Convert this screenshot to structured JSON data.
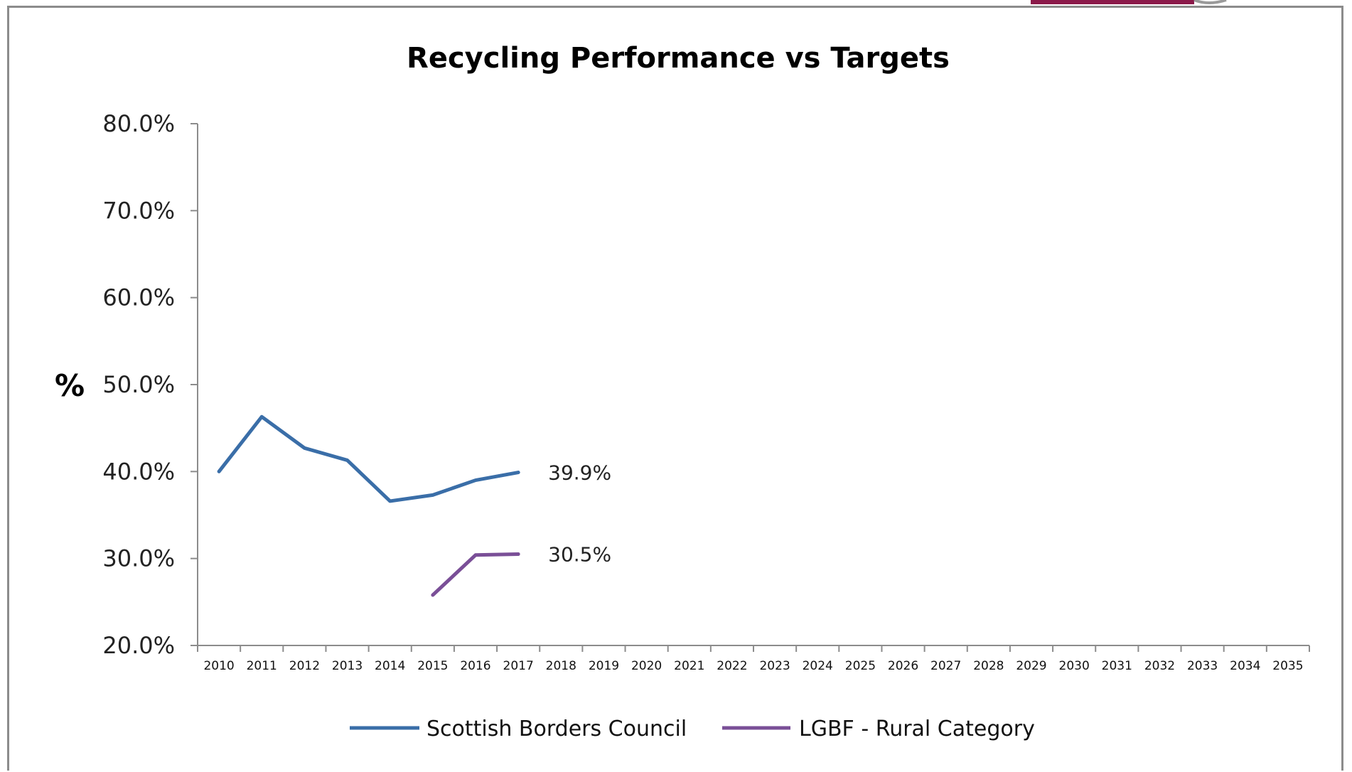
{
  "chart_data": {
    "type": "line",
    "title": "Recycling Performance vs Targets",
    "xlabel": "",
    "ylabel": "%",
    "ylim": [
      20,
      80
    ],
    "y_ticks": [
      "20.0%",
      "30.0%",
      "40.0%",
      "50.0%",
      "60.0%",
      "70.0%",
      "80.0%"
    ],
    "y_tick_values": [
      20,
      30,
      40,
      50,
      60,
      70,
      80
    ],
    "categories": [
      "2010",
      "2011",
      "2012",
      "2013",
      "2014",
      "2015",
      "2016",
      "2017",
      "2018",
      "2019",
      "2020",
      "2021",
      "2022",
      "2023",
      "2024",
      "2025",
      "2026",
      "2027",
      "2028",
      "2029",
      "2030",
      "2031",
      "2032",
      "2033",
      "2034",
      "2035"
    ],
    "series": [
      {
        "name": "Scottish Borders Council",
        "color": "#3a6ea8",
        "values": [
          40.0,
          46.3,
          42.7,
          41.3,
          36.6,
          37.3,
          39.0,
          39.9,
          null,
          null,
          null,
          null,
          null,
          null,
          null,
          null,
          null,
          null,
          null,
          null,
          null,
          null,
          null,
          null,
          null,
          null
        ],
        "end_label": "39.9%"
      },
      {
        "name": "LGBF - Rural Category",
        "color": "#7a4f97",
        "values": [
          null,
          null,
          null,
          null,
          null,
          25.8,
          30.4,
          30.5,
          null,
          null,
          null,
          null,
          null,
          null,
          null,
          null,
          null,
          null,
          null,
          null,
          null,
          null,
          null,
          null,
          null,
          null
        ],
        "end_label": "30.5%"
      }
    ],
    "grid": false,
    "legend_position": "bottom"
  },
  "decoration_color": "#8b1a4a"
}
